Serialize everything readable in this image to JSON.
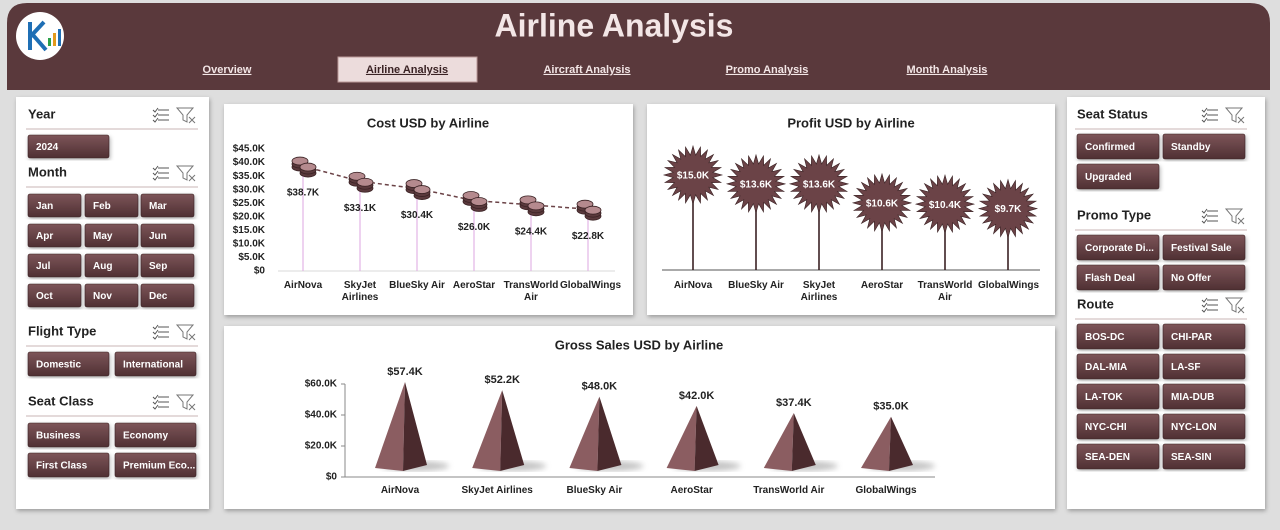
{
  "header": {
    "title": "Airline Analysis"
  },
  "nav": {
    "tabs": [
      "Overview",
      "Airline Analysis",
      "Aircraft Analysis",
      "Promo Analysis",
      "Month Analysis"
    ],
    "active_tab": 1
  },
  "slicers": [
    {
      "title": "Year",
      "items": [
        "2024"
      ]
    },
    {
      "title": "Month",
      "items": [
        "Jan",
        "Feb",
        "Mar",
        "Apr",
        "May",
        "Jun",
        "Jul",
        "Aug",
        "Sep",
        "Oct",
        "Nov",
        "Dec"
      ]
    },
    {
      "title": "Flight Type",
      "items": [
        "Domestic",
        "International"
      ]
    },
    {
      "title": "Seat Class",
      "items": [
        "Business",
        "Economy",
        "First Class",
        "Premium Eco..."
      ]
    },
    {
      "title": "Seat Status",
      "items": [
        "Confirmed",
        "Standby",
        "Upgraded"
      ]
    },
    {
      "title": "Promo Type",
      "items": [
        "Corporate Di...",
        "Festival Sale",
        "Flash Deal",
        "No Offer"
      ]
    },
    {
      "title": "Route",
      "items": [
        "BOS-DC",
        "CHI-PAR",
        "DAL-MIA",
        "LA-SF",
        "LA-TOK",
        "MIA-DUB",
        "NYC-CHI",
        "NYC-LON",
        "SEA-DEN",
        "SEA-SIN"
      ]
    }
  ],
  "chart_data": [
    {
      "type": "line",
      "title": "Cost USD by Airline",
      "categories": [
        "AirNova",
        "SkyJet Airlines",
        "BlueSky Air",
        "AeroStar",
        "TransWorld Air",
        "GlobalWings"
      ],
      "values": [
        38700,
        33100,
        30400,
        26000,
        24400,
        22800
      ],
      "value_labels": [
        "$38.7K",
        "$33.1K",
        "$30.4K",
        "$26.0K",
        "$24.4K",
        "$22.8K"
      ],
      "color": "#6b4347",
      "ylim": [
        0,
        45000
      ],
      "yticks": [
        {
          "value": 0,
          "label": "$0"
        },
        {
          "value": 5000,
          "label": "$5.0K"
        },
        {
          "value": 10000,
          "label": "$10.0K"
        },
        {
          "value": 15000,
          "label": "$15.0K"
        },
        {
          "value": 20000,
          "label": "$20.0K"
        },
        {
          "value": 25000,
          "label": "$25.0K"
        },
        {
          "value": 30000,
          "label": "$30.0K"
        },
        {
          "value": 35000,
          "label": "$35.0K"
        },
        {
          "value": 40000,
          "label": "$40.0K"
        },
        {
          "value": 45000,
          "label": "$45.0K"
        }
      ]
    },
    {
      "type": "lollipop",
      "title": "Profit USD by Airline",
      "categories": [
        "AirNova",
        "BlueSky Air",
        "SkyJet Airlines",
        "AeroStar",
        "TransWorld Air",
        "GlobalWings"
      ],
      "values": [
        15000,
        13600,
        13600,
        10600,
        10400,
        9700
      ],
      "value_labels": [
        "$15.0K",
        "$13.6K",
        "$13.6K",
        "$10.6K",
        "$10.4K",
        "$9.7K"
      ],
      "color": "#6b4347"
    },
    {
      "type": "pyramid",
      "title": "Gross Sales USD by Airline",
      "categories": [
        "AirNova",
        "SkyJet Airlines",
        "BlueSky Air",
        "AeroStar",
        "TransWorld Air",
        "GlobalWings"
      ],
      "values": [
        57400,
        52200,
        48000,
        42000,
        37400,
        35000
      ],
      "value_labels": [
        "$57.4K",
        "$52.2K",
        "$48.0K",
        "$42.0K",
        "$37.4K",
        "$35.0K"
      ],
      "color": "#6b4347",
      "ylim": [
        0,
        60000
      ],
      "yticks": [
        {
          "value": 0,
          "label": "$0"
        },
        {
          "value": 20000,
          "label": "$20.0K"
        },
        {
          "value": 40000,
          "label": "$40.0K"
        },
        {
          "value": 60000,
          "label": "$60.0K"
        }
      ]
    }
  ]
}
